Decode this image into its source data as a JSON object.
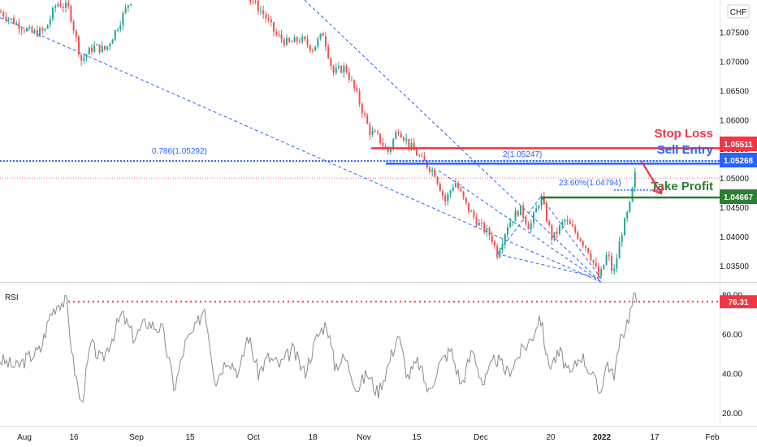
{
  "chart_data": {
    "type": "candlestick",
    "currency": "CHF",
    "price_axis": {
      "ticks": [
        "1.07500",
        "1.07000",
        "1.06500",
        "1.06000",
        "1.05500",
        "1.05000",
        "1.04500",
        "1.04000",
        "1.03500"
      ],
      "ylim": [
        1.0322,
        1.0805
      ]
    },
    "time_axis": {
      "labels": [
        "Aug",
        "16",
        "Sep",
        "15",
        "Oct",
        "18",
        "Nov",
        "15",
        "Dec",
        "20",
        "2022",
        "17",
        "Feb"
      ]
    },
    "price_labels": {
      "stop_loss": "1.05511",
      "sell_entry": "1.05268",
      "take_profit": "1.04667"
    },
    "annotations": {
      "stop_loss": "Stop Loss",
      "sell_entry": "Sell Entry",
      "take_profit": "Take Profit",
      "fib_786": "0.786(1.05292)",
      "fib_2": "2(1.05247)",
      "fib_2360": "23.60%(1.04794)"
    },
    "price_path": [
      {
        "x": 0,
        "y": 1.0785
      },
      {
        "x": 20,
        "y": 1.0765
      },
      {
        "x": 40,
        "y": 1.0748
      },
      {
        "x": 55,
        "y": 1.0752
      },
      {
        "x": 70,
        "y": 1.08
      },
      {
        "x": 85,
        "y": 1.079
      },
      {
        "x": 100,
        "y": 1.0702
      },
      {
        "x": 115,
        "y": 1.0725
      },
      {
        "x": 130,
        "y": 1.072
      },
      {
        "x": 145,
        "y": 1.076
      },
      {
        "x": 155,
        "y": 1.079
      },
      {
        "x": 160,
        "y": 1.0805
      },
      {
        "x": 310,
        "y": 1.0805
      },
      {
        "x": 325,
        "y": 1.078
      },
      {
        "x": 340,
        "y": 1.0745
      },
      {
        "x": 355,
        "y": 1.073
      },
      {
        "x": 370,
        "y": 1.0738
      },
      {
        "x": 385,
        "y": 1.0722
      },
      {
        "x": 398,
        "y": 1.0748
      },
      {
        "x": 410,
        "y": 1.068
      },
      {
        "x": 425,
        "y": 1.069
      },
      {
        "x": 440,
        "y": 1.064
      },
      {
        "x": 455,
        "y": 1.058
      },
      {
        "x": 465,
        "y": 1.057
      },
      {
        "x": 478,
        "y": 1.0545
      },
      {
        "x": 490,
        "y": 1.0585
      },
      {
        "x": 505,
        "y": 1.0555
      },
      {
        "x": 520,
        "y": 1.053
      },
      {
        "x": 535,
        "y": 1.051
      },
      {
        "x": 548,
        "y": 1.046
      },
      {
        "x": 560,
        "y": 1.0495
      },
      {
        "x": 575,
        "y": 1.045
      },
      {
        "x": 590,
        "y": 1.042
      },
      {
        "x": 605,
        "y": 1.04
      },
      {
        "x": 612,
        "y": 1.037
      },
      {
        "x": 625,
        "y": 1.042
      },
      {
        "x": 640,
        "y": 1.0448
      },
      {
        "x": 652,
        "y": 1.0415
      },
      {
        "x": 666,
        "y": 1.0468
      },
      {
        "x": 680,
        "y": 1.0395
      },
      {
        "x": 695,
        "y": 1.0428
      },
      {
        "x": 710,
        "y": 1.0405
      },
      {
        "x": 725,
        "y": 1.0375
      },
      {
        "x": 738,
        "y": 1.0328
      },
      {
        "x": 748,
        "y": 1.0372
      },
      {
        "x": 755,
        "y": 1.0332
      },
      {
        "x": 765,
        "y": 1.0405
      },
      {
        "x": 775,
        "y": 1.045
      },
      {
        "x": 783,
        "y": 1.0515
      }
    ],
    "rsi": {
      "label": "RSI",
      "ticks": [
        "80.00",
        "60.00",
        "40.00",
        "20.00"
      ],
      "ylim": [
        15,
        83
      ],
      "current": "76.31",
      "path": [
        {
          "x": 0,
          "y": 47
        },
        {
          "x": 20,
          "y": 43
        },
        {
          "x": 35,
          "y": 48
        },
        {
          "x": 50,
          "y": 52
        },
        {
          "x": 62,
          "y": 70
        },
        {
          "x": 72,
          "y": 76
        },
        {
          "x": 82,
          "y": 76
        },
        {
          "x": 90,
          "y": 46
        },
        {
          "x": 100,
          "y": 24
        },
        {
          "x": 112,
          "y": 55
        },
        {
          "x": 125,
          "y": 46
        },
        {
          "x": 140,
          "y": 60
        },
        {
          "x": 150,
          "y": 70
        },
        {
          "x": 165,
          "y": 58
        },
        {
          "x": 180,
          "y": 66
        },
        {
          "x": 200,
          "y": 62
        },
        {
          "x": 215,
          "y": 32
        },
        {
          "x": 228,
          "y": 55
        },
        {
          "x": 240,
          "y": 62
        },
        {
          "x": 252,
          "y": 74
        },
        {
          "x": 265,
          "y": 36
        },
        {
          "x": 280,
          "y": 48
        },
        {
          "x": 295,
          "y": 40
        },
        {
          "x": 305,
          "y": 60
        },
        {
          "x": 318,
          "y": 40
        },
        {
          "x": 330,
          "y": 48
        },
        {
          "x": 345,
          "y": 44
        },
        {
          "x": 360,
          "y": 52
        },
        {
          "x": 375,
          "y": 40
        },
        {
          "x": 390,
          "y": 58
        },
        {
          "x": 402,
          "y": 66
        },
        {
          "x": 412,
          "y": 44
        },
        {
          "x": 425,
          "y": 48
        },
        {
          "x": 440,
          "y": 32
        },
        {
          "x": 452,
          "y": 40
        },
        {
          "x": 465,
          "y": 30
        },
        {
          "x": 478,
          "y": 44
        },
        {
          "x": 490,
          "y": 60
        },
        {
          "x": 502,
          "y": 38
        },
        {
          "x": 515,
          "y": 46
        },
        {
          "x": 528,
          "y": 30
        },
        {
          "x": 540,
          "y": 44
        },
        {
          "x": 555,
          "y": 52
        },
        {
          "x": 568,
          "y": 34
        },
        {
          "x": 582,
          "y": 52
        },
        {
          "x": 595,
          "y": 34
        },
        {
          "x": 610,
          "y": 48
        },
        {
          "x": 625,
          "y": 40
        },
        {
          "x": 640,
          "y": 50
        },
        {
          "x": 655,
          "y": 58
        },
        {
          "x": 665,
          "y": 70
        },
        {
          "x": 675,
          "y": 44
        },
        {
          "x": 690,
          "y": 50
        },
        {
          "x": 702,
          "y": 38
        },
        {
          "x": 715,
          "y": 50
        },
        {
          "x": 728,
          "y": 40
        },
        {
          "x": 738,
          "y": 30
        },
        {
          "x": 748,
          "y": 46
        },
        {
          "x": 755,
          "y": 38
        },
        {
          "x": 765,
          "y": 58
        },
        {
          "x": 775,
          "y": 70
        },
        {
          "x": 781,
          "y": 79
        },
        {
          "x": 785,
          "y": 76
        }
      ]
    },
    "colors": {
      "up": "#26a69a",
      "down": "#ef5350",
      "stop_loss": "#f23645",
      "sell_entry": "#2962ff",
      "take_profit": "#2e7d32",
      "trend": "#2962ff",
      "rsi_line": "#8a8a8a",
      "rsi_marker": "#f23645"
    }
  }
}
